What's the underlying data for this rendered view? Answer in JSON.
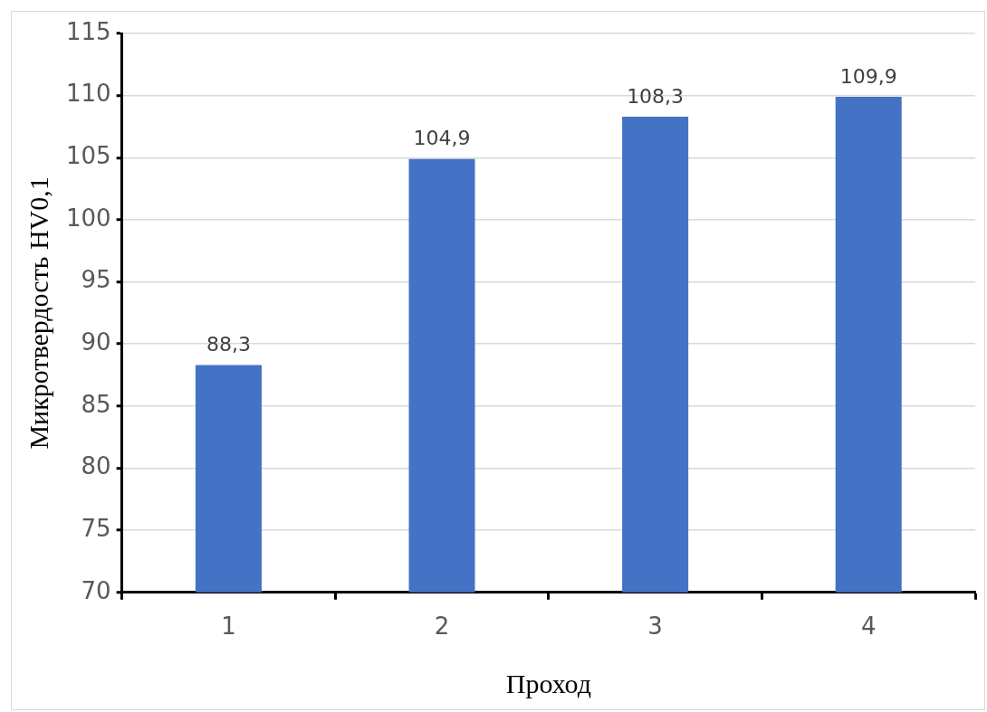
{
  "chart_data": {
    "type": "bar",
    "xlabel": "Проход",
    "ylabel": "Микротвердость HV0,1",
    "categories": [
      "1",
      "2",
      "3",
      "4"
    ],
    "values": [
      88.3,
      104.9,
      108.3,
      109.9
    ],
    "value_labels": [
      "88,3",
      "104,9",
      "108,3",
      "109,9"
    ],
    "color": "#4472c4",
    "ylim": [
      70,
      115
    ],
    "yticks": [
      70,
      75,
      80,
      85,
      90,
      95,
      100,
      105,
      110,
      115
    ],
    "grid": "y",
    "legend": false
  }
}
